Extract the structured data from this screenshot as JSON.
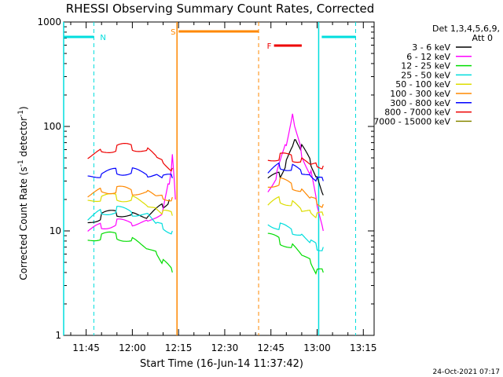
{
  "chart_data": {
    "type": "line",
    "title": "RHESSI Observing Summary Count Rates, Corrected",
    "xlabel": "Start Time (16-Jun-14 11:37:42)",
    "ylabel_main": "Corrected Count Rate (s",
    "ylabel_sup1": "-1",
    "ylabel_mid": " detector",
    "ylabel_sup2": "-1",
    "ylabel_end": ")",
    "footer": "24-Oct-2021 07:17",
    "y_scale": "log",
    "ylim": [
      1,
      1000
    ],
    "xlim": [
      "11:37:42",
      "13:18:30"
    ],
    "x_ticks": [
      "11:45",
      "12:00",
      "12:15",
      "12:30",
      "12:45",
      "13:00",
      "13:15"
    ],
    "y_ticks": [
      "1",
      "10",
      "100",
      "1000"
    ],
    "legend": {
      "header1": "Det 1,3,4,5,6,9,",
      "header2": "Att 0",
      "placement": "right"
    },
    "series": [
      {
        "name": "3 - 6 keV",
        "color": "#000000",
        "segments": [
          [
            [
              "11:45:30",
              12
            ],
            [
              "11:50",
              14
            ],
            [
              "11:55",
              15
            ],
            [
              "12:00",
              14
            ],
            [
              "12:05",
              14
            ],
            [
              "12:10",
              17
            ],
            [
              "12:12",
              20
            ]
          ],
          [
            [
              "12:44",
              30
            ],
            [
              "12:48",
              35
            ],
            [
              "12:50",
              45
            ],
            [
              "12:52",
              65
            ],
            [
              "12:53",
              78
            ],
            [
              "12:55",
              62
            ],
            [
              "12:58",
              45
            ],
            [
              "13:00",
              32
            ],
            [
              "13:02",
              22
            ]
          ]
        ]
      },
      {
        "name": "6 - 12 keV",
        "color": "#ff00ff",
        "segments": [
          [
            [
              "11:45:30",
              10
            ],
            [
              "11:50",
              11
            ],
            [
              "11:55",
              12
            ],
            [
              "12:00",
              12
            ],
            [
              "12:05",
              12
            ],
            [
              "12:10",
              16
            ],
            [
              "12:12",
              30
            ],
            [
              "12:13",
              50
            ],
            [
              "12:14",
              20
            ]
          ],
          [
            [
              "12:44",
              25
            ],
            [
              "12:47",
              35
            ],
            [
              "12:50",
              70
            ],
            [
              "12:52",
              130
            ],
            [
              "12:53",
              90
            ],
            [
              "12:55",
              55
            ],
            [
              "12:58",
              35
            ],
            [
              "13:00",
              18
            ],
            [
              "13:02",
              10
            ]
          ]
        ]
      },
      {
        "name": "12 - 25 keV",
        "color": "#00dd00",
        "segments": [
          [
            [
              "11:45:30",
              8
            ],
            [
              "11:50",
              9
            ],
            [
              "11:55",
              9
            ],
            [
              "12:00",
              8
            ],
            [
              "12:05",
              7
            ],
            [
              "12:08",
              6
            ],
            [
              "12:10",
              5
            ],
            [
              "12:13",
              4
            ]
          ],
          [
            [
              "12:44",
              9
            ],
            [
              "12:48",
              8
            ],
            [
              "12:52",
              7
            ],
            [
              "12:55",
              6
            ],
            [
              "12:58",
              5
            ],
            [
              "13:00",
              4
            ],
            [
              "13:02",
              4
            ]
          ]
        ]
      },
      {
        "name": "25 - 50 keV",
        "color": "#00dddd",
        "segments": [
          [
            [
              "11:45:30",
              13
            ],
            [
              "11:50",
              15
            ],
            [
              "11:55",
              16
            ],
            [
              "12:00",
              15
            ],
            [
              "12:05",
              14
            ],
            [
              "12:08",
              12
            ],
            [
              "12:10",
              11
            ],
            [
              "12:13",
              10
            ]
          ],
          [
            [
              "12:44",
              12
            ],
            [
              "12:48",
              11
            ],
            [
              "12:52",
              10
            ],
            [
              "12:55",
              9
            ],
            [
              "12:58",
              8
            ],
            [
              "13:00",
              7
            ],
            [
              "13:02",
              7
            ]
          ]
        ]
      },
      {
        "name": "50 - 100 keV",
        "color": "#dddd00",
        "segments": [
          [
            [
              "11:45:30",
              19
            ],
            [
              "11:50",
              21
            ],
            [
              "11:55",
              21
            ],
            [
              "12:00",
              20
            ],
            [
              "12:05",
              18
            ],
            [
              "12:08",
              16
            ],
            [
              "12:10",
              15
            ],
            [
              "12:13",
              14
            ]
          ],
          [
            [
              "12:44",
              17
            ],
            [
              "12:48",
              20
            ],
            [
              "12:52",
              18
            ],
            [
              "12:55",
              16
            ],
            [
              "12:58",
              15
            ],
            [
              "13:00",
              14
            ],
            [
              "13:02",
              14
            ]
          ]
        ]
      },
      {
        "name": "100 - 300 keV",
        "color": "#ff8800",
        "segments": [
          [
            [
              "11:45:30",
              22
            ],
            [
              "11:50",
              24
            ],
            [
              "11:55",
              25
            ],
            [
              "12:00",
              24
            ],
            [
              "12:05",
              23
            ],
            [
              "12:08",
              22
            ],
            [
              "12:10",
              21
            ],
            [
              "12:13",
              21
            ]
          ],
          [
            [
              "12:44",
              27
            ],
            [
              "12:48",
              30
            ],
            [
              "12:52",
              27
            ],
            [
              "12:55",
              24
            ],
            [
              "12:58",
              21
            ],
            [
              "13:00",
              19
            ],
            [
              "13:02",
              18
            ]
          ]
        ]
      },
      {
        "name": "300 - 800 keV",
        "color": "#0000ff",
        "segments": [
          [
            [
              "11:45:30",
              32
            ],
            [
              "11:50",
              35
            ],
            [
              "11:55",
              37
            ],
            [
              "12:00",
              37
            ],
            [
              "12:05",
              35
            ],
            [
              "12:08",
              34
            ],
            [
              "12:10",
              33
            ],
            [
              "12:13",
              32
            ]
          ],
          [
            [
              "12:44",
              35
            ],
            [
              "12:48",
              42
            ],
            [
              "12:52",
              40
            ],
            [
              "12:55",
              37
            ],
            [
              "12:58",
              33
            ],
            [
              "13:00",
              31
            ],
            [
              "13:02",
              30
            ]
          ]
        ]
      },
      {
        "name": "800 - 7000 keV",
        "color": "#ee0000",
        "segments": [
          [
            [
              "11:45:30",
              52
            ],
            [
              "11:50",
              57
            ],
            [
              "11:55",
              63
            ],
            [
              "12:00",
              64
            ],
            [
              "12:05",
              58
            ],
            [
              "12:08",
              52
            ],
            [
              "12:10",
              46
            ],
            [
              "12:13",
              40
            ]
          ],
          [
            [
              "12:44",
              48
            ],
            [
              "12:48",
              52
            ],
            [
              "12:52",
              50
            ],
            [
              "12:55",
              47
            ],
            [
              "12:58",
              44
            ],
            [
              "13:00",
              43
            ],
            [
              "13:02",
              42
            ]
          ]
        ]
      },
      {
        "name": "7000 - 15000 keV",
        "color": "#888800",
        "segments": []
      }
    ],
    "flag_bars": [
      {
        "label": "N",
        "color": "#00dddd",
        "ranges": [
          [
            "11:37:42",
            "11:47:30"
          ],
          [
            "13:01:30",
            "13:12:30"
          ]
        ]
      },
      {
        "label": "S",
        "color": "#ff8800",
        "ranges": [
          [
            "12:15",
            "12:41"
          ]
        ]
      },
      {
        "label": "F",
        "color": "#ee0000",
        "ranges": [
          [
            "12:46",
            "12:55"
          ]
        ]
      }
    ],
    "markers": [
      {
        "color": "#00dddd",
        "style": "solid",
        "t": "11:37:42"
      },
      {
        "color": "#00dddd",
        "style": "dashed",
        "t": "11:47:30"
      },
      {
        "color": "#ff8800",
        "style": "solid",
        "t": "12:14:30"
      },
      {
        "color": "#ff8800",
        "style": "dashed",
        "t": "12:41"
      },
      {
        "color": "#00dddd",
        "style": "solid",
        "t": "13:00:30"
      },
      {
        "color": "#00dddd",
        "style": "dashed",
        "t": "13:12:30"
      }
    ]
  }
}
